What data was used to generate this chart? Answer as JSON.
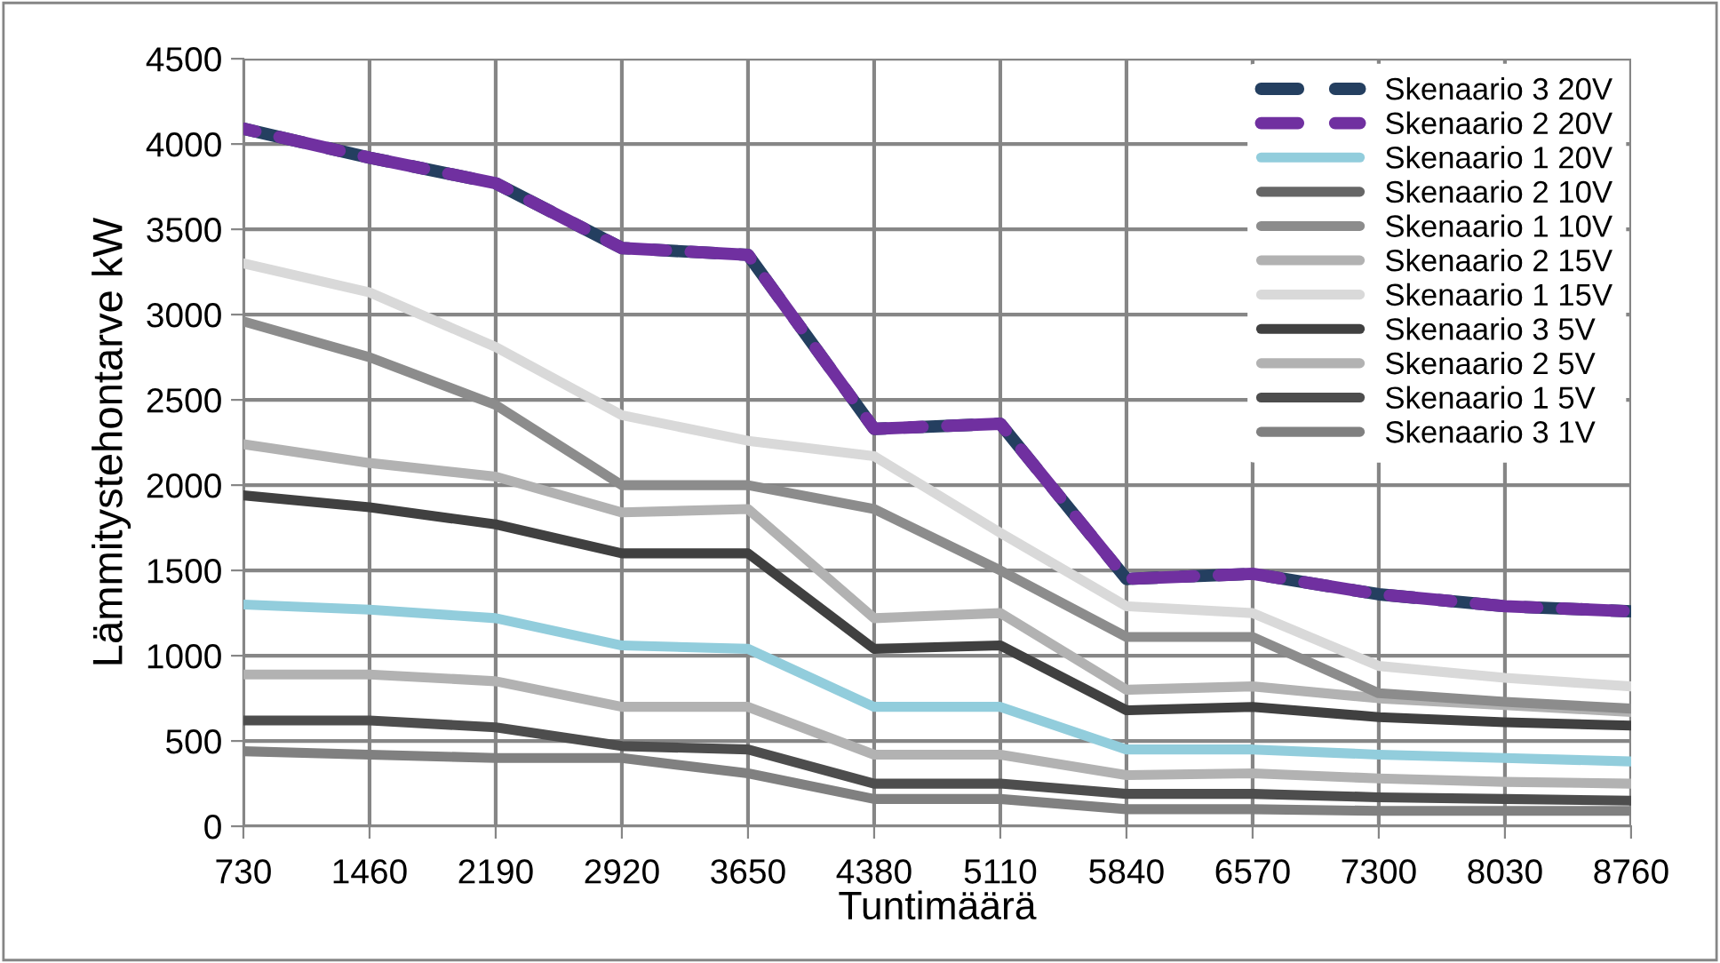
{
  "chart_data": {
    "type": "line",
    "xlabel": "Tuntimäärä",
    "ylabel": "Lämmitystehontarve kW",
    "x": [
      730,
      1460,
      2190,
      2920,
      3650,
      4380,
      5110,
      5840,
      6570,
      7300,
      8030,
      8760
    ],
    "xlim": [
      730,
      8760
    ],
    "xticks": [
      730,
      1460,
      2190,
      2920,
      3650,
      4380,
      5110,
      5840,
      6570,
      7300,
      8030,
      8760
    ],
    "ylim": [
      0,
      4500
    ],
    "yticks": [
      0,
      500,
      1000,
      1500,
      2000,
      2500,
      3000,
      3500,
      4000,
      4500
    ],
    "grid": true,
    "legend": "top right",
    "marker": "none",
    "series": [
      {
        "name": "Skenaario 3 20V",
        "color": "#243f60",
        "line_style": "dashed",
        "values": [
          4090,
          3920,
          3770,
          3390,
          3350,
          2330,
          2360,
          1450,
          1480,
          1360,
          1290,
          1260
        ]
      },
      {
        "name": "Skenaario 2 20V",
        "color": "#7030a0",
        "line_style": "dashed",
        "values": [
          4090,
          3920,
          3770,
          3390,
          3350,
          2330,
          2360,
          1450,
          1480,
          1360,
          1290,
          1260
        ]
      },
      {
        "name": "Skenaario 1 20V",
        "color": "#92cddc",
        "values": [
          1300,
          1270,
          1220,
          1060,
          1040,
          700,
          700,
          450,
          450,
          420,
          400,
          380
        ]
      },
      {
        "name": "Skenaario 2 10V",
        "color": "#666666",
        "values": [
          null,
          null,
          null,
          null,
          null,
          null,
          null,
          null,
          null,
          null,
          null,
          null
        ]
      },
      {
        "name": "Skenaario 1 10V",
        "color": "#8c8c8c",
        "values": [
          2960,
          2750,
          2470,
          2000,
          2000,
          1860,
          1500,
          1110,
          1110,
          780,
          730,
          690
        ]
      },
      {
        "name": "Skenaario 2 15V",
        "color": "#b2b2b2",
        "values": [
          2240,
          2130,
          2050,
          1840,
          1860,
          1220,
          1250,
          800,
          820,
          750,
          710,
          670
        ]
      },
      {
        "name": "Skenaario 1 15V",
        "color": "#d9d9d9",
        "values": [
          3300,
          3130,
          2810,
          2410,
          2260,
          2170,
          1720,
          1290,
          1250,
          940,
          870,
          820
        ]
      },
      {
        "name": "Skenaario 3 5V",
        "color": "#404040",
        "values": [
          1940,
          1870,
          1770,
          1600,
          1600,
          1040,
          1060,
          680,
          700,
          640,
          610,
          590
        ]
      },
      {
        "name": "Skenaario 2 5V",
        "color": "#b2b2b2",
        "values": [
          890,
          890,
          850,
          700,
          700,
          420,
          420,
          300,
          310,
          280,
          260,
          250
        ]
      },
      {
        "name": "Skenaario 1 5V",
        "color": "#4d4d4d",
        "values": [
          620,
          620,
          580,
          470,
          450,
          250,
          250,
          190,
          190,
          170,
          160,
          150
        ]
      },
      {
        "name": "Skenaario 3 1V",
        "color": "#808080",
        "values": [
          440,
          420,
          400,
          400,
          310,
          160,
          160,
          100,
          100,
          90,
          90,
          90
        ]
      }
    ]
  }
}
